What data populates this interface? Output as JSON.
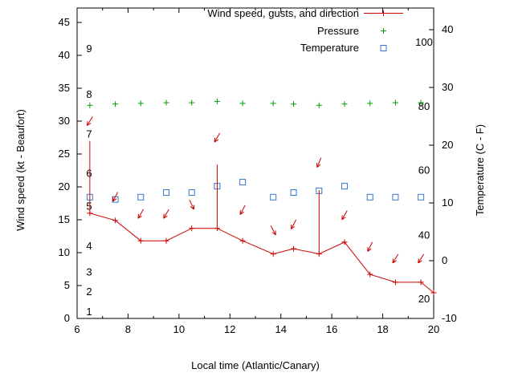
{
  "chart_data": {
    "type": "line",
    "title": "",
    "xlabel": "Local time (Atlantic/Canary)",
    "ylabel_left": "Wind speed (kt - Beaufort)",
    "ylabel_right": "Temperature (C - F)",
    "xlim": [
      6,
      20
    ],
    "x_ticks": [
      6,
      8,
      10,
      12,
      14,
      16,
      18,
      20
    ],
    "x_minor_tick_step": 1,
    "ylim_left": [
      0,
      47.2
    ],
    "y_ticks_left": [
      0,
      5,
      10,
      15,
      20,
      25,
      30,
      35,
      40,
      45
    ],
    "ylim_right": [
      -10,
      43.9
    ],
    "y_ticks_right": [
      -10,
      0,
      10,
      20,
      30,
      40
    ],
    "grid": false,
    "legend_position": "top-center-inside",
    "beaufort_scale_labels": [
      {
        "label": "1",
        "kt": 1
      },
      {
        "label": "2",
        "kt": 4
      },
      {
        "label": "3",
        "kt": 7
      },
      {
        "label": "4",
        "kt": 11
      },
      {
        "label": "5",
        "kt": 17
      },
      {
        "label": "6",
        "kt": 22
      },
      {
        "label": "7",
        "kt": 28
      },
      {
        "label": "8",
        "kt": 34
      },
      {
        "label": "9",
        "kt": 41
      }
    ],
    "fahrenheit_scale_labels": [
      {
        "label": "20",
        "c": -6.7
      },
      {
        "label": "40",
        "c": 4.4
      },
      {
        "label": "60",
        "c": 15.6
      },
      {
        "label": "80",
        "c": 26.7
      },
      {
        "label": "100",
        "c": 37.8
      }
    ],
    "legend": [
      {
        "label": "Wind speed, gusts, and direction",
        "marker": "line-plus",
        "color": "#cc0000"
      },
      {
        "label": "Pressure",
        "marker": "plus",
        "color": "#00a000"
      },
      {
        "label": "Temperature",
        "marker": "open-square",
        "color": "#3377cc"
      }
    ],
    "colors": {
      "wind": "#cc0000",
      "pressure": "#00a000",
      "temperature": "#3377cc",
      "axis": "#000000"
    },
    "series": {
      "time": [
        6.5,
        7.5,
        8.5,
        9.5,
        10.5,
        11.5,
        12.5,
        13.7,
        14.5,
        15.5,
        16.5,
        17.5,
        18.5,
        19.5
      ],
      "wind_time": [
        6.5,
        7.5,
        8.5,
        9.5,
        10.5,
        11.5,
        12.5,
        13.7,
        14.5,
        15.5,
        16.5,
        17.5,
        18.5,
        19.5,
        20.0
      ],
      "wind_kt": [
        16.0,
        14.9,
        11.8,
        11.8,
        13.7,
        13.7,
        11.8,
        9.8,
        10.6,
        9.8,
        11.6,
        6.7,
        5.5,
        5.5,
        3.9
      ],
      "gust_kt": [
        27.0,
        null,
        null,
        null,
        null,
        23.4,
        null,
        null,
        null,
        19.5,
        null,
        null,
        null,
        null
      ],
      "arrow_y_kt": [
        30.0,
        18.5,
        15.9,
        15.9,
        17.3,
        27.5,
        16.5,
        13.4,
        14.3,
        23.7,
        15.7,
        10.9,
        9.1,
        9.1
      ],
      "arrow_tilt_deg": [
        32,
        28,
        30,
        30,
        -25,
        30,
        28,
        -28,
        28,
        22,
        30,
        26,
        32,
        32
      ],
      "pressure_plotted_kt_scale": [
        32.4,
        32.6,
        32.7,
        32.8,
        32.8,
        33.0,
        32.7,
        32.7,
        32.6,
        32.4,
        32.6,
        32.7,
        32.8,
        32.8
      ],
      "temperature_c": [
        11.0,
        10.6,
        11.0,
        11.8,
        11.8,
        12.9,
        13.6,
        11.0,
        11.8,
        12.1,
        12.9,
        11.0,
        11.0,
        11.0
      ]
    }
  }
}
